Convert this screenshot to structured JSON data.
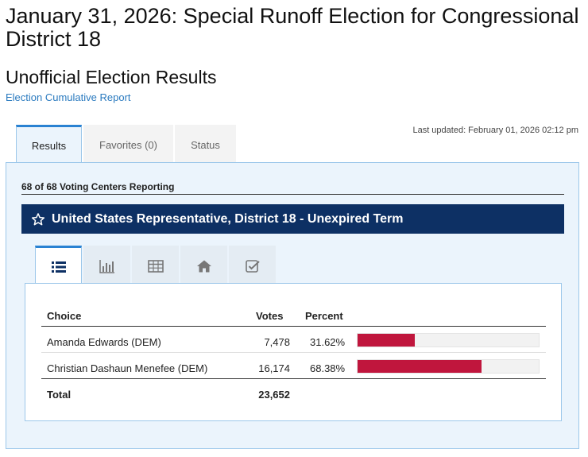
{
  "page": {
    "title": "January 31, 2026: Special Runoff Election for Congressional District 18",
    "subtitle": "Unofficial Election Results",
    "report_link": "Election Cumulative Report",
    "last_updated": "Last updated: February 01, 2026 02:12 pm"
  },
  "tabs": [
    {
      "label": "Results",
      "active": true
    },
    {
      "label": "Favorites (0)",
      "active": false
    },
    {
      "label": "Status",
      "active": false
    }
  ],
  "reporting": "68 of 68 Voting Centers Reporting",
  "race": {
    "title": "United States Representative, District 18 - Unexpired Term",
    "icon": "star-outline-icon"
  },
  "view_tabs": [
    {
      "icon": "list-icon",
      "active": true
    },
    {
      "icon": "bar-chart-icon",
      "active": false
    },
    {
      "icon": "table-icon",
      "active": false
    },
    {
      "icon": "home-icon",
      "active": false
    },
    {
      "icon": "checkbox-icon",
      "active": false
    }
  ],
  "table": {
    "headers": {
      "choice": "Choice",
      "votes": "Votes",
      "percent": "Percent"
    },
    "rows": [
      {
        "choice": "Amanda Edwards (DEM)",
        "votes": "7,478",
        "percent": "31.62%",
        "share": 0.3162
      },
      {
        "choice": "Christian Dashaun Menefee (DEM)",
        "votes": "16,174",
        "percent": "68.38%",
        "share": 0.6838
      }
    ],
    "total": {
      "label": "Total",
      "votes": "23,652"
    }
  },
  "colors": {
    "bar": "#c0163d",
    "race_header": "#0d3064",
    "accent": "#2a82d2",
    "link": "#2a7abf"
  }
}
